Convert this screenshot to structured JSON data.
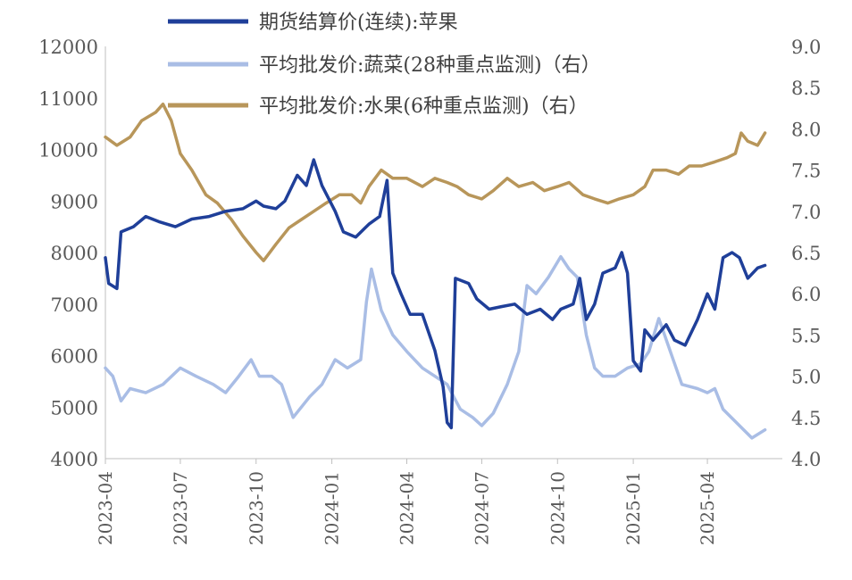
{
  "chart_data": {
    "type": "line",
    "x_labels": [
      "2023-04",
      "2023-07",
      "2023-10",
      "2024-01",
      "2024-04",
      "2024-07",
      "2024-10",
      "2025-01",
      "2025-04"
    ],
    "x_range": [
      "2023-04",
      "2025-07"
    ],
    "y_left": {
      "ylim": [
        4000,
        12000
      ],
      "ticks": [
        "4000",
        "5000",
        "6000",
        "7000",
        "8000",
        "9000",
        "10000",
        "11000",
        "12000"
      ]
    },
    "y_right": {
      "ylim": [
        4.0,
        9.0
      ],
      "ticks": [
        "4.0",
        "4.5",
        "5.0",
        "5.5",
        "6.0",
        "6.5",
        "7.0",
        "7.5",
        "8.0",
        "8.5",
        "9.0"
      ]
    },
    "legend_position": "top",
    "grid": false,
    "series": [
      {
        "name": "期货结算价(连续):苹果",
        "axis": "left",
        "color": "#1f3f99",
        "points": [
          [
            "2023-04-01",
            7900
          ],
          [
            "2023-04-05",
            7400
          ],
          [
            "2023-04-15",
            7300
          ],
          [
            "2023-04-20",
            8400
          ],
          [
            "2023-05-05",
            8500
          ],
          [
            "2023-05-20",
            8700
          ],
          [
            "2023-06-05",
            8600
          ],
          [
            "2023-06-25",
            8500
          ],
          [
            "2023-07-15",
            8650
          ],
          [
            "2023-08-05",
            8700
          ],
          [
            "2023-08-25",
            8800
          ],
          [
            "2023-09-15",
            8850
          ],
          [
            "2023-10-01",
            9000
          ],
          [
            "2023-10-10",
            8900
          ],
          [
            "2023-10-25",
            8850
          ],
          [
            "2023-11-05",
            9000
          ],
          [
            "2023-11-20",
            9500
          ],
          [
            "2023-12-01",
            9300
          ],
          [
            "2023-12-10",
            9800
          ],
          [
            "2023-12-20",
            9300
          ],
          [
            "2024-01-05",
            8800
          ],
          [
            "2024-01-15",
            8400
          ],
          [
            "2024-01-30",
            8300
          ],
          [
            "2024-02-15",
            8550
          ],
          [
            "2024-02-28",
            8700
          ],
          [
            "2024-03-08",
            9400
          ],
          [
            "2024-03-15",
            7600
          ],
          [
            "2024-03-25",
            7200
          ],
          [
            "2024-04-05",
            6800
          ],
          [
            "2024-04-20",
            6800
          ],
          [
            "2024-05-05",
            6100
          ],
          [
            "2024-05-15",
            5400
          ],
          [
            "2024-05-20",
            4700
          ],
          [
            "2024-05-25",
            4600
          ],
          [
            "2024-05-30",
            7500
          ],
          [
            "2024-06-15",
            7400
          ],
          [
            "2024-06-25",
            7100
          ],
          [
            "2024-07-10",
            6900
          ],
          [
            "2024-07-25",
            6950
          ],
          [
            "2024-08-10",
            7000
          ],
          [
            "2024-08-25",
            6800
          ],
          [
            "2024-09-10",
            6900
          ],
          [
            "2024-09-25",
            6700
          ],
          [
            "2024-10-05",
            6900
          ],
          [
            "2024-10-20",
            7000
          ],
          [
            "2024-10-28",
            7500
          ],
          [
            "2024-11-05",
            6700
          ],
          [
            "2024-11-15",
            7000
          ],
          [
            "2024-11-25",
            7600
          ],
          [
            "2024-12-10",
            7700
          ],
          [
            "2024-12-18",
            8000
          ],
          [
            "2024-12-25",
            7600
          ],
          [
            "2025-01-01",
            5900
          ],
          [
            "2025-01-10",
            5700
          ],
          [
            "2025-01-15",
            6500
          ],
          [
            "2025-01-25",
            6300
          ],
          [
            "2025-02-10",
            6600
          ],
          [
            "2025-02-20",
            6300
          ],
          [
            "2025-03-05",
            6200
          ],
          [
            "2025-03-20",
            6700
          ],
          [
            "2025-04-01",
            7200
          ],
          [
            "2025-04-10",
            6900
          ],
          [
            "2025-04-20",
            7900
          ],
          [
            "2025-05-01",
            8000
          ],
          [
            "2025-05-10",
            7900
          ],
          [
            "2025-05-20",
            7500
          ],
          [
            "2025-06-01",
            7700
          ],
          [
            "2025-06-10",
            7750
          ]
        ]
      },
      {
        "name": "平均批发价:蔬菜(28种重点监测)（右）",
        "axis": "right",
        "color": "#a9bde5",
        "points": [
          [
            "2023-04-01",
            5.1
          ],
          [
            "2023-04-10",
            5.0
          ],
          [
            "2023-04-20",
            4.7
          ],
          [
            "2023-05-01",
            4.85
          ],
          [
            "2023-05-20",
            4.8
          ],
          [
            "2023-06-10",
            4.9
          ],
          [
            "2023-07-01",
            5.1
          ],
          [
            "2023-07-20",
            5.0
          ],
          [
            "2023-08-10",
            4.9
          ],
          [
            "2023-08-25",
            4.8
          ],
          [
            "2023-09-10",
            5.0
          ],
          [
            "2023-09-25",
            5.2
          ],
          [
            "2023-10-05",
            5.0
          ],
          [
            "2023-10-20",
            5.0
          ],
          [
            "2023-11-01",
            4.9
          ],
          [
            "2023-11-15",
            4.5
          ],
          [
            "2023-12-05",
            4.75
          ],
          [
            "2023-12-20",
            4.9
          ],
          [
            "2024-01-05",
            5.2
          ],
          [
            "2024-01-20",
            5.1
          ],
          [
            "2024-02-05",
            5.2
          ],
          [
            "2024-02-12",
            5.9
          ],
          [
            "2024-02-18",
            6.3
          ],
          [
            "2024-03-01",
            5.8
          ],
          [
            "2024-03-15",
            5.5
          ],
          [
            "2024-04-01",
            5.3
          ],
          [
            "2024-04-20",
            5.1
          ],
          [
            "2024-05-05",
            5.0
          ],
          [
            "2024-05-20",
            4.9
          ],
          [
            "2024-06-05",
            4.6
          ],
          [
            "2024-06-20",
            4.5
          ],
          [
            "2024-07-01",
            4.4
          ],
          [
            "2024-07-15",
            4.55
          ],
          [
            "2024-08-01",
            4.9
          ],
          [
            "2024-08-15",
            5.3
          ],
          [
            "2024-08-25",
            6.1
          ],
          [
            "2024-09-05",
            6.0
          ],
          [
            "2024-09-20",
            6.2
          ],
          [
            "2024-10-05",
            6.45
          ],
          [
            "2024-10-15",
            6.3
          ],
          [
            "2024-10-25",
            6.2
          ],
          [
            "2024-11-05",
            5.5
          ],
          [
            "2024-11-15",
            5.1
          ],
          [
            "2024-11-25",
            5.0
          ],
          [
            "2024-12-10",
            5.0
          ],
          [
            "2024-12-25",
            5.1
          ],
          [
            "2025-01-10",
            5.15
          ],
          [
            "2025-01-20",
            5.3
          ],
          [
            "2025-02-01",
            5.7
          ],
          [
            "2025-02-15",
            5.3
          ],
          [
            "2025-03-01",
            4.9
          ],
          [
            "2025-03-20",
            4.85
          ],
          [
            "2025-04-01",
            4.8
          ],
          [
            "2025-04-10",
            4.85
          ],
          [
            "2025-04-20",
            4.6
          ],
          [
            "2025-05-10",
            4.4
          ],
          [
            "2025-05-25",
            4.25
          ],
          [
            "2025-06-10",
            4.35
          ]
        ]
      },
      {
        "name": "平均批发价:水果(6种重点监测)（右）",
        "axis": "right",
        "color": "#b8965a",
        "points": [
          [
            "2023-04-01",
            7.9
          ],
          [
            "2023-04-15",
            7.8
          ],
          [
            "2023-05-01",
            7.9
          ],
          [
            "2023-05-15",
            8.1
          ],
          [
            "2023-06-01",
            8.2
          ],
          [
            "2023-06-10",
            8.3
          ],
          [
            "2023-06-20",
            8.1
          ],
          [
            "2023-07-01",
            7.7
          ],
          [
            "2023-07-15",
            7.5
          ],
          [
            "2023-08-01",
            7.2
          ],
          [
            "2023-08-15",
            7.1
          ],
          [
            "2023-09-01",
            6.9
          ],
          [
            "2023-09-15",
            6.7
          ],
          [
            "2023-10-01",
            6.5
          ],
          [
            "2023-10-10",
            6.4
          ],
          [
            "2023-10-25",
            6.6
          ],
          [
            "2023-11-10",
            6.8
          ],
          [
            "2023-11-25",
            6.9
          ],
          [
            "2023-12-10",
            7.0
          ],
          [
            "2023-12-25",
            7.1
          ],
          [
            "2024-01-10",
            7.2
          ],
          [
            "2024-01-25",
            7.2
          ],
          [
            "2024-02-05",
            7.1
          ],
          [
            "2024-02-15",
            7.3
          ],
          [
            "2024-03-01",
            7.5
          ],
          [
            "2024-03-15",
            7.4
          ],
          [
            "2024-04-01",
            7.4
          ],
          [
            "2024-04-20",
            7.3
          ],
          [
            "2024-05-05",
            7.4
          ],
          [
            "2024-05-20",
            7.35
          ],
          [
            "2024-06-01",
            7.3
          ],
          [
            "2024-06-15",
            7.2
          ],
          [
            "2024-07-01",
            7.15
          ],
          [
            "2024-07-15",
            7.25
          ],
          [
            "2024-08-01",
            7.4
          ],
          [
            "2024-08-15",
            7.3
          ],
          [
            "2024-09-01",
            7.35
          ],
          [
            "2024-09-15",
            7.25
          ],
          [
            "2024-10-01",
            7.3
          ],
          [
            "2024-10-15",
            7.35
          ],
          [
            "2024-11-01",
            7.2
          ],
          [
            "2024-11-15",
            7.15
          ],
          [
            "2024-12-01",
            7.1
          ],
          [
            "2024-12-15",
            7.15
          ],
          [
            "2025-01-01",
            7.2
          ],
          [
            "2025-01-15",
            7.3
          ],
          [
            "2025-01-25",
            7.5
          ],
          [
            "2025-02-10",
            7.5
          ],
          [
            "2025-02-25",
            7.45
          ],
          [
            "2025-03-10",
            7.55
          ],
          [
            "2025-03-25",
            7.55
          ],
          [
            "2025-04-10",
            7.6
          ],
          [
            "2025-04-25",
            7.65
          ],
          [
            "2025-05-05",
            7.7
          ],
          [
            "2025-05-12",
            7.95
          ],
          [
            "2025-05-20",
            7.85
          ],
          [
            "2025-06-01",
            7.8
          ],
          [
            "2025-06-10",
            7.95
          ]
        ]
      }
    ]
  }
}
